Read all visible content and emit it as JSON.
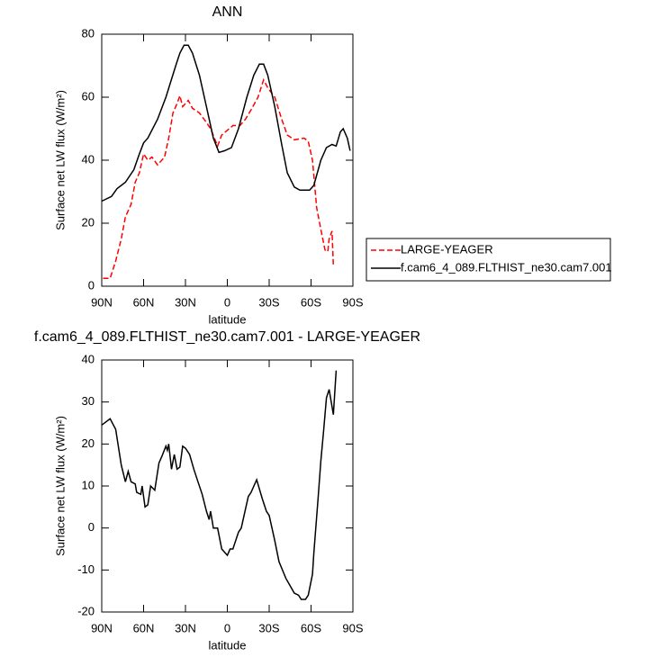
{
  "chart_data": [
    {
      "type": "line",
      "title": "ANN",
      "xlabel": "latitude",
      "ylabel": "Surface net LW flux (W/m²)",
      "xlim": [
        90,
        -90
      ],
      "xticks": [
        {
          "value": 90,
          "label": "90N"
        },
        {
          "value": 60,
          "label": "60N"
        },
        {
          "value": 30,
          "label": "30N"
        },
        0,
        {
          "value": -30,
          "label": "30S"
        },
        {
          "value": -60,
          "label": "60S"
        },
        {
          "value": -90,
          "label": "90S"
        }
      ],
      "ylim": [
        0,
        80
      ],
      "yticks": [
        0,
        20,
        40,
        60,
        80
      ],
      "legend": "right",
      "series": [
        {
          "name": "LARGE-YEAGER",
          "color": "#ff0000",
          "dash": true,
          "x": [
            89,
            84,
            80,
            76,
            73,
            69,
            66,
            63,
            60,
            57,
            54,
            50,
            45,
            42,
            39,
            36,
            34,
            32,
            28,
            25,
            20,
            15,
            12,
            7,
            4,
            0,
            -4,
            -9,
            -13,
            -17,
            -22,
            -26,
            -29,
            -34,
            -39,
            -43,
            -48,
            -55,
            -58,
            -61,
            -64,
            -67,
            -70,
            -72,
            -73,
            -75,
            -76
          ],
          "values": [
            2.5,
            2.5,
            8,
            15,
            22,
            26,
            33,
            36,
            42,
            40,
            41,
            38.5,
            41,
            47,
            55,
            58,
            60.5,
            57,
            59,
            56.5,
            55,
            52,
            50,
            44.5,
            48,
            49.5,
            51,
            51,
            53,
            56,
            60,
            65.5,
            63,
            60,
            53,
            48,
            46.5,
            47,
            46,
            40,
            25,
            18,
            11.5,
            11,
            15,
            17.5,
            6.5
          ]
        },
        {
          "name": "f.cam6_4_089.FLTHIST_ne30.cam7.001",
          "color": "#000000",
          "dash": false,
          "x": [
            90,
            83,
            79,
            73,
            67,
            63,
            60,
            57,
            50,
            44,
            37,
            34,
            31,
            28,
            25,
            20,
            15,
            10,
            6,
            2,
            -3,
            -8,
            -14,
            -19,
            -23,
            -26,
            -29,
            -34,
            -39,
            -43,
            -48,
            -52,
            -59,
            -62,
            -67,
            -71,
            -75,
            -78,
            -81,
            -83,
            -86,
            -88
          ],
          "values": [
            27,
            28.5,
            31,
            33,
            37,
            42,
            45.5,
            47,
            53,
            60,
            70,
            74,
            76.5,
            76.5,
            74,
            67,
            57,
            47,
            42.5,
            43,
            44,
            50,
            60,
            67,
            70.5,
            70.5,
            67,
            57,
            45,
            36,
            31.5,
            30.5,
            30.5,
            32,
            40,
            44,
            45,
            44.5,
            49,
            50,
            47,
            43
          ]
        }
      ]
    },
    {
      "type": "line",
      "title": "f.cam6_4_089.FLTHIST_ne30.cam7.001 - LARGE-YEAGER",
      "xlabel": "latitude",
      "ylabel": "Surface net LW flux (W/m²)",
      "xlim": [
        90,
        -90
      ],
      "xticks": [
        {
          "value": 90,
          "label": "90N"
        },
        {
          "value": 60,
          "label": "60N"
        },
        {
          "value": 30,
          "label": "30N"
        },
        0,
        {
          "value": -30,
          "label": "30S"
        },
        {
          "value": -60,
          "label": "60S"
        },
        {
          "value": -90,
          "label": "90S"
        }
      ],
      "ylim": [
        -20,
        40
      ],
      "yticks": [
        -20,
        -10,
        0,
        10,
        20,
        30,
        40
      ],
      "series": [
        {
          "color": "#000000",
          "dash": false,
          "x": [
            90,
            84,
            80,
            76,
            73,
            71,
            69,
            66,
            65,
            62,
            61,
            59,
            57,
            55,
            52,
            49,
            47,
            44,
            43,
            42,
            40,
            38,
            36,
            34,
            32,
            30,
            27,
            24,
            21,
            18,
            15,
            13,
            12,
            10,
            7,
            4,
            0,
            -2,
            -4,
            -8,
            -10,
            -12,
            -15,
            -17,
            -21,
            -25,
            -28,
            -30,
            -34,
            -37,
            -42,
            -48,
            -51,
            -53,
            -56,
            -58,
            -61,
            -62,
            -65,
            -67,
            -69,
            -71,
            -73,
            -76,
            -78
          ],
          "values": [
            24.5,
            26,
            23.5,
            15,
            11,
            13.5,
            11,
            10.5,
            8.5,
            8,
            10,
            5,
            5.5,
            10,
            9,
            15.5,
            17,
            19.5,
            18.5,
            20,
            14,
            17.5,
            14,
            14.5,
            19.5,
            19,
            17.5,
            14,
            11,
            8,
            4,
            2,
            4,
            0,
            0,
            -5,
            -6.5,
            -5,
            -5,
            -1,
            0,
            3,
            7.5,
            8.5,
            11.5,
            7,
            4,
            3,
            -3,
            -8,
            -12,
            -15.5,
            -16,
            -17,
            -17,
            -16,
            -11,
            -6,
            7,
            16,
            23,
            31,
            33,
            27,
            37.5
          ]
        }
      ]
    }
  ]
}
